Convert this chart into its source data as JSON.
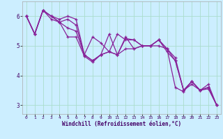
{
  "title": "",
  "xlabel": "Windchill (Refroidissement éolien,°C)",
  "ylabel": "",
  "background_color": "#cceeff",
  "grid_color": "#aaddcc",
  "line_color": "#882299",
  "xlim": [
    -0.5,
    23.5
  ],
  "ylim": [
    2.7,
    6.5
  ],
  "yticks": [
    3,
    4,
    5,
    6
  ],
  "xticks": [
    0,
    1,
    2,
    3,
    4,
    5,
    6,
    7,
    8,
    9,
    10,
    11,
    12,
    13,
    14,
    15,
    16,
    17,
    18,
    19,
    20,
    21,
    22,
    23
  ],
  "series": [
    [
      6.0,
      5.4,
      6.2,
      6.0,
      5.9,
      6.0,
      5.9,
      4.7,
      5.3,
      5.1,
      4.8,
      5.4,
      5.2,
      5.2,
      5.0,
      5.0,
      5.2,
      4.9,
      4.6,
      3.5,
      3.7,
      3.5,
      3.6,
      3.0
    ],
    [
      6.0,
      5.4,
      6.2,
      6.0,
      5.8,
      5.9,
      5.7,
      4.7,
      4.5,
      4.7,
      4.8,
      4.7,
      5.3,
      4.9,
      5.0,
      5.0,
      5.2,
      4.9,
      4.5,
      3.5,
      3.8,
      3.5,
      3.6,
      3.0
    ],
    [
      6.0,
      5.4,
      6.2,
      6.0,
      5.8,
      5.6,
      5.5,
      4.7,
      4.5,
      4.7,
      4.8,
      4.7,
      4.9,
      4.9,
      5.0,
      5.0,
      5.2,
      4.8,
      4.5,
      3.5,
      3.8,
      3.5,
      3.7,
      3.0
    ],
    [
      6.0,
      5.4,
      6.2,
      5.9,
      5.8,
      5.3,
      5.3,
      4.65,
      4.45,
      4.7,
      5.4,
      4.7,
      5.25,
      5.2,
      5.0,
      5.0,
      5.0,
      4.9,
      3.6,
      3.45,
      3.8,
      3.5,
      3.55,
      3.0
    ]
  ]
}
